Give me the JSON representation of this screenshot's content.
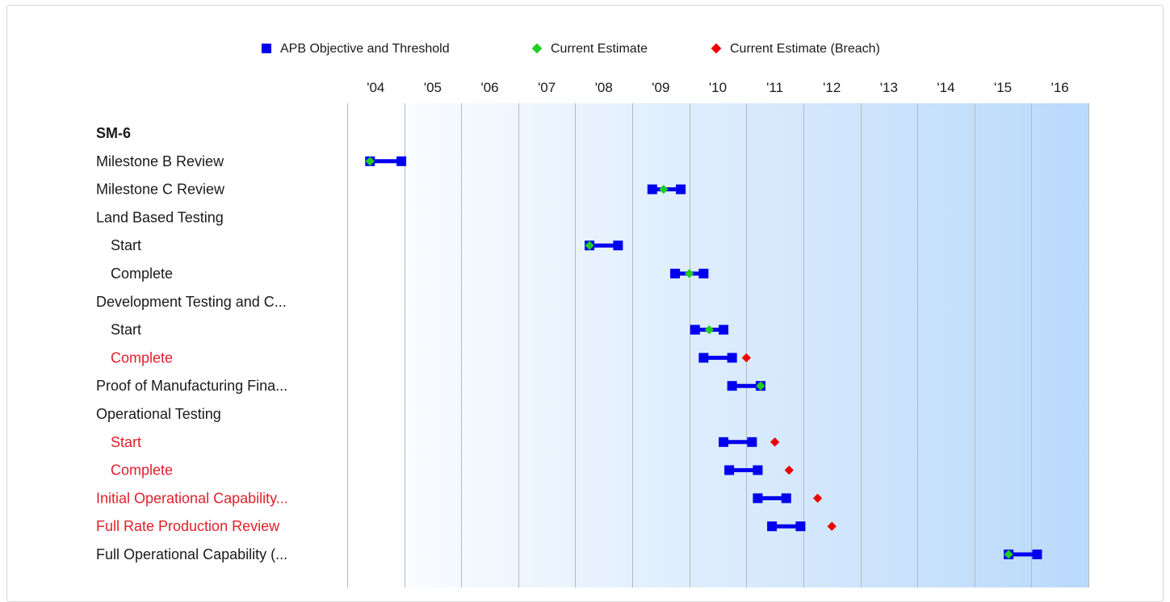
{
  "legend": [
    {
      "label": "APB Objective and Threshold",
      "color": "#0000ee",
      "shape": "square"
    },
    {
      "label": "Current Estimate",
      "color": "#22cc22",
      "shape": "diamond"
    },
    {
      "label": "Current Estimate (Breach)",
      "color": "#ee0000",
      "shape": "diamond"
    }
  ],
  "colors": {
    "apb": "#0000ee",
    "estimate": "#22cc22",
    "breach": "#ee0000",
    "breach_text": "#e0202a",
    "gridline": "#b8b8b8",
    "bg_start": "#ffffff",
    "bg_end": "#b9d9fb"
  },
  "chart_data": {
    "type": "gantt-range",
    "title": "SM-6",
    "x_axis": {
      "ticks": [
        "'04",
        "'05",
        "'06",
        "'07",
        "'08",
        "'09",
        "'10",
        "'11",
        "'12",
        "'13",
        "'14",
        "'15",
        "'16"
      ],
      "range": [
        2003.5,
        2016.5
      ],
      "unit": "year"
    },
    "rows": [
      {
        "label": "SM-6",
        "kind": "header"
      },
      {
        "label": "Milestone B Review",
        "kind": "item",
        "objective": 2003.9,
        "threshold": 2004.45,
        "estimate": 2003.9,
        "breach": false
      },
      {
        "label": "Milestone C Review",
        "kind": "item",
        "objective": 2008.85,
        "threshold": 2009.35,
        "estimate": 2009.05,
        "breach": false
      },
      {
        "label": "Land Based Testing",
        "kind": "group"
      },
      {
        "label": "Start",
        "kind": "sub",
        "objective": 2007.75,
        "threshold": 2008.25,
        "estimate": 2007.75,
        "breach": false
      },
      {
        "label": "Complete",
        "kind": "sub",
        "objective": 2009.25,
        "threshold": 2009.75,
        "estimate": 2009.5,
        "breach": false
      },
      {
        "label": "Development Testing and C...",
        "kind": "group"
      },
      {
        "label": "Start",
        "kind": "sub",
        "objective": 2009.6,
        "threshold": 2010.1,
        "estimate": 2009.85,
        "breach": false
      },
      {
        "label": "Complete",
        "kind": "sub",
        "objective": 2009.75,
        "threshold": 2010.25,
        "estimate": 2010.5,
        "breach": true
      },
      {
        "label": "Proof of Manufacturing Fina...",
        "kind": "item",
        "objective": 2010.25,
        "threshold": 2010.75,
        "estimate": 2010.75,
        "breach": false
      },
      {
        "label": "Operational Testing",
        "kind": "group"
      },
      {
        "label": "Start",
        "kind": "sub",
        "objective": 2010.1,
        "threshold": 2010.6,
        "estimate": 2011.0,
        "breach": true
      },
      {
        "label": "Complete",
        "kind": "sub",
        "objective": 2010.2,
        "threshold": 2010.7,
        "estimate": 2011.25,
        "breach": true
      },
      {
        "label": "Initial Operational Capability...",
        "kind": "item",
        "objective": 2010.7,
        "threshold": 2011.2,
        "estimate": 2011.75,
        "breach": true
      },
      {
        "label": "Full Rate Production Review",
        "kind": "item",
        "objective": 2010.95,
        "threshold": 2011.45,
        "estimate": 2012.0,
        "breach": true
      },
      {
        "label": "Full Operational Capability (...",
        "kind": "item",
        "objective": 2015.1,
        "threshold": 2015.6,
        "estimate": 2015.1,
        "breach": false
      }
    ]
  }
}
